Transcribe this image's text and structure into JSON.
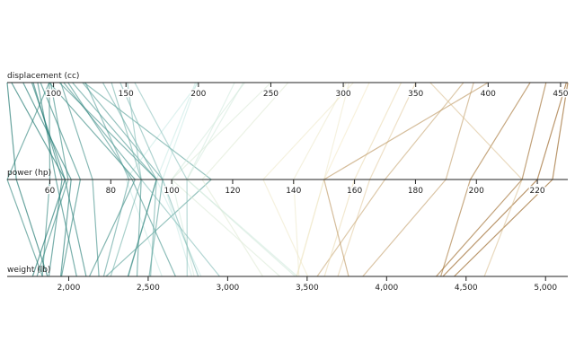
{
  "chart_data": {
    "type": "parallel",
    "categories": [
      "displacement (cc)",
      "power (hp)",
      "weight (lb)"
    ],
    "axes": [
      {
        "lim": [
          68,
          455
        ],
        "ticks": [
          100,
          150,
          200,
          250,
          300,
          350,
          400,
          450
        ]
      },
      {
        "lim": [
          46,
          230
        ],
        "ticks": [
          60,
          80,
          100,
          120,
          140,
          160,
          180,
          200,
          220
        ]
      },
      {
        "lim": [
          1613,
          5140
        ],
        "ticks": [
          {
            "value": 2000,
            "label": "2,000"
          },
          {
            "value": 2500,
            "label": "2,500"
          },
          {
            "value": 3000,
            "label": "3,000"
          },
          {
            "value": 3500,
            "label": "3,500"
          },
          {
            "value": 4000,
            "label": "4,000"
          },
          {
            "value": 4500,
            "label": "4,500"
          },
          {
            "value": 5000,
            "label": "5,000"
          }
        ]
      }
    ],
    "color_scale": [
      "#01665e",
      "#c7eae5",
      "#f6e8c3",
      "#8c510a"
    ],
    "series": [
      {
        "values": [
          307,
          130,
          3504
        ]
      },
      {
        "values": [
          350,
          165,
          3693
        ]
      },
      {
        "values": [
          318,
          150,
          3436
        ]
      },
      {
        "values": [
          304,
          150,
          3433
        ]
      },
      {
        "values": [
          302,
          140,
          3449
        ]
      },
      {
        "values": [
          429,
          198,
          4341
        ]
      },
      {
        "values": [
          454,
          220,
          4354
        ]
      },
      {
        "values": [
          440,
          215,
          4312
        ]
      },
      {
        "values": [
          455,
          225,
          4425
        ]
      },
      {
        "values": [
          390,
          190,
          3850
        ]
      },
      {
        "values": [
          383,
          170,
          3563
        ]
      },
      {
        "values": [
          340,
          160,
          3609
        ]
      },
      {
        "values": [
          400,
          150,
          3761
        ]
      },
      {
        "values": [
          113,
          95,
          2372
        ]
      },
      {
        "values": [
          198,
          95,
          2833
        ]
      },
      {
        "values": [
          199,
          97,
          2774
        ]
      },
      {
        "values": [
          200,
          85,
          2587
        ]
      },
      {
        "values": [
          97,
          88,
          2130
        ]
      },
      {
        "values": [
          97,
          46,
          1835
        ]
      },
      {
        "values": [
          110,
          87,
          2672
        ]
      },
      {
        "values": [
          107,
          90,
          2430
        ]
      },
      {
        "values": [
          104,
          95,
          2375
        ]
      },
      {
        "values": [
          121,
          113,
          2234
        ]
      },
      {
        "values": [
          360,
          215,
          4615
        ]
      },
      {
        "values": [
          140,
          90,
          2264
        ]
      },
      {
        "values": [
          122,
          86,
          2220
        ]
      },
      {
        "values": [
          91,
          70,
          1955
        ]
      },
      {
        "values": [
          85,
          65,
          2110
        ]
      },
      {
        "values": [
          98,
          66,
          1800
        ]
      },
      {
        "values": [
          151,
          90,
          2950
        ]
      },
      {
        "values": [
          225,
          105,
          3439
        ]
      },
      {
        "values": [
          250,
          100,
          3329
        ]
      },
      {
        "values": [
          232,
          100,
          2789
        ]
      },
      {
        "values": [
          97,
          60,
          1834
        ]
      },
      {
        "values": [
          79,
          67,
          1950
        ]
      },
      {
        "values": [
          71,
          65,
          1773
        ]
      },
      {
        "values": [
          68,
          49,
          1867
        ]
      },
      {
        "values": [
          120,
          97,
          2506
        ]
      },
      {
        "values": [
          146,
          97,
          2815
        ]
      },
      {
        "values": [
          89,
          62,
          2050
        ]
      },
      {
        "values": [
          134,
          95,
          2515
        ]
      },
      {
        "values": [
          156,
          105,
          2745
        ]
      },
      {
        "values": [
          262,
          110,
          3221
        ]
      },
      {
        "values": [
          231,
          105,
          3425
        ]
      },
      {
        "values": [
          105,
          74,
          2190
        ]
      },
      {
        "values": [
          86,
          64,
          1875
        ]
      }
    ]
  }
}
